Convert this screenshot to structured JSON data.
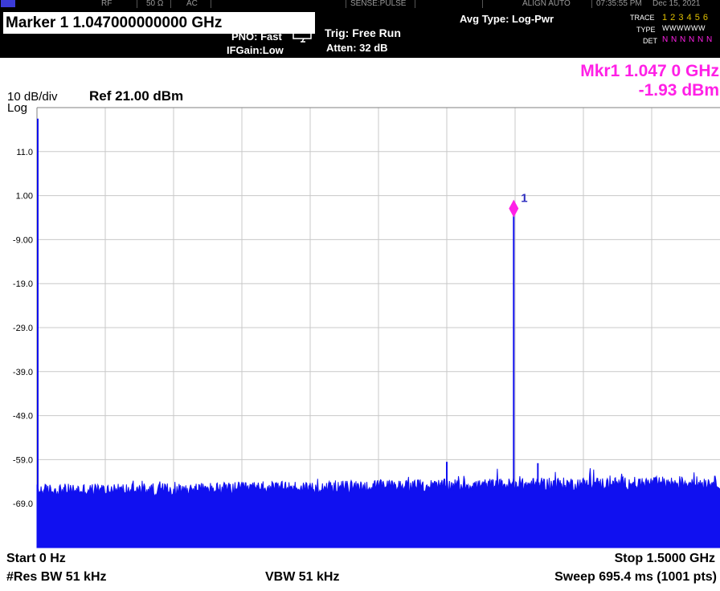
{
  "status_bar": {
    "rf": "RF",
    "impedance": "50 Ω",
    "coupling": "AC",
    "sense": "SENSE:PULSE",
    "align": "ALIGN AUTO",
    "time": "07:35:55 PM",
    "date": "Dec 15, 2021"
  },
  "header": {
    "marker_title": "Marker 1 1.047000000000 GHz",
    "pno": "PNO: Fast",
    "ifgain": "IFGain:Low",
    "trig": "Trig: Free Run",
    "atten": "Atten: 32 dB",
    "avg_type": "Avg Type: Log-Pwr",
    "trace_label": "TRACE",
    "trace_values": "1 2 3 4 5 6",
    "type_label": "TYPE",
    "type_values": "WWWWWW",
    "det_label": "DET",
    "det_values": "N N N N N N"
  },
  "scale": {
    "per_div": "10 dB/div",
    "type": "Log",
    "ref": "Ref 21.00 dBm"
  },
  "marker_readout": {
    "freq": "Mkr1 1.047 0 GHz",
    "level": "-1.93 dBm",
    "marker_id": "1"
  },
  "footer": {
    "start": "Start 0 Hz",
    "stop": "Stop 1.5000 GHz",
    "res_bw": "#Res BW 51 kHz",
    "vbw": "VBW 51 kHz",
    "sweep": "Sweep  695.4 ms (1001 pts)"
  },
  "colors": {
    "trace": "#1010f0",
    "marker": "#ff20e6",
    "grid": "#c8c8c8",
    "header_bg": "#000000"
  },
  "chart_data": {
    "type": "line",
    "x_unit": "GHz",
    "y_unit": "dBm",
    "xlim": [
      0,
      1.5
    ],
    "ylim": [
      -79,
      21
    ],
    "y_ticks": [
      11,
      1,
      -9,
      -19,
      -29,
      -39,
      -49,
      -59,
      -69
    ],
    "y_tick_labels": [
      "11.0",
      "1.00",
      "-9.00",
      "-19.0",
      "-29.0",
      "-39.0",
      "-49.0",
      "-59.0",
      "-69.0"
    ],
    "grid": true,
    "noise_floor": [
      {
        "x": 0.0,
        "y": -66
      },
      {
        "x": 0.3,
        "y": -65.8
      },
      {
        "x": 0.6,
        "y": -65.3
      },
      {
        "x": 0.9,
        "y": -64.9
      },
      {
        "x": 1.2,
        "y": -64.5
      },
      {
        "x": 1.5,
        "y": -64.2
      }
    ],
    "spurs": [
      {
        "x": 0.0,
        "y": 18.5
      },
      {
        "x": 0.9,
        "y": -59.5
      },
      {
        "x": 1.047,
        "y": -1.93
      },
      {
        "x": 1.1,
        "y": -59.8
      }
    ],
    "marker": {
      "x": 1.047,
      "y": -1.93
    }
  }
}
